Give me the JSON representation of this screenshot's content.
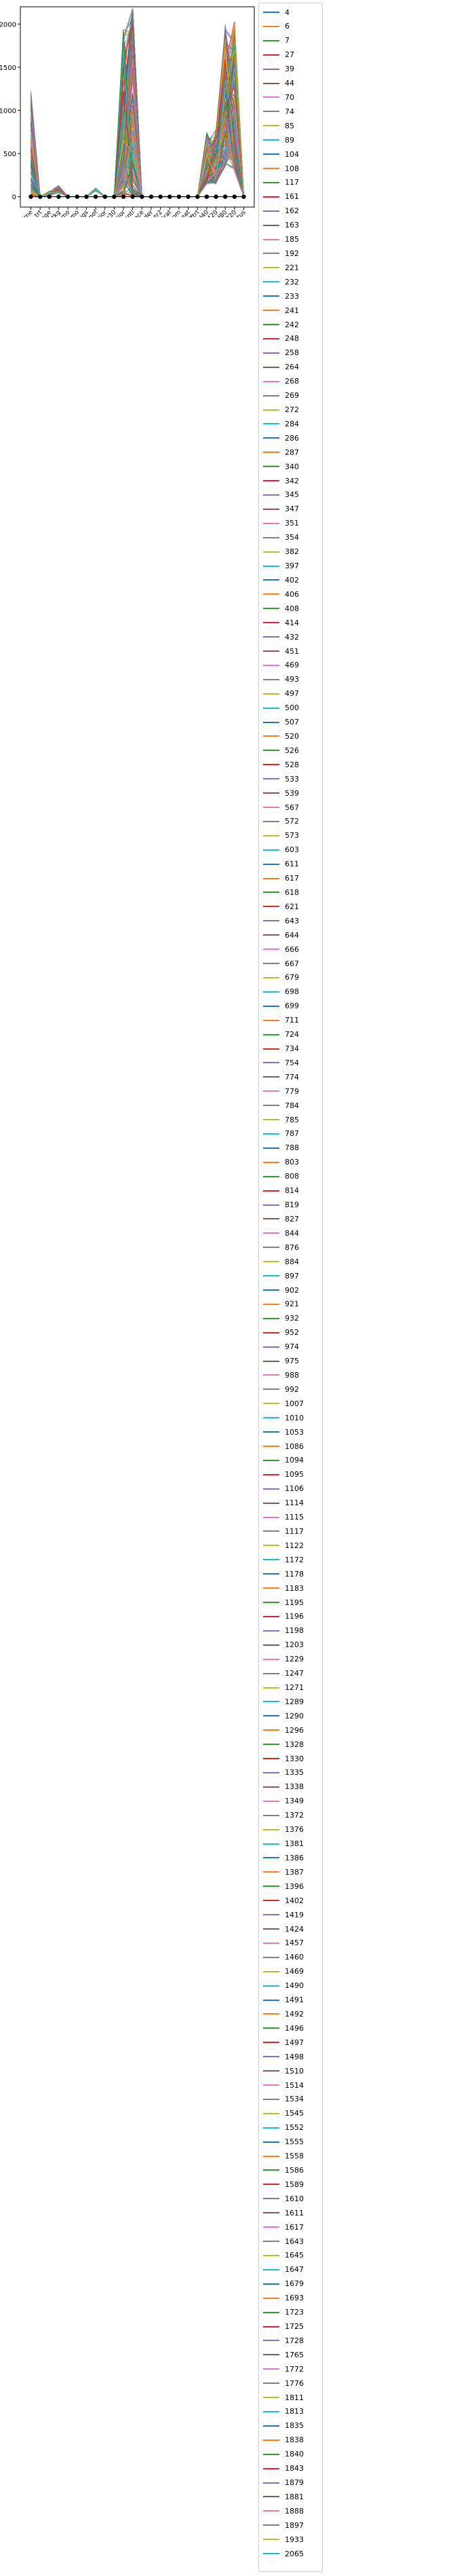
{
  "chart_data": {
    "type": "line",
    "title": "",
    "xlabel": "",
    "ylabel": "",
    "categories": [
      "time",
      "trt",
      "age",
      "wtkg",
      "hemo",
      "homo",
      "drugs",
      "karnof",
      "oprior",
      "z30",
      "zprior",
      "preanti",
      "race",
      "gender",
      "str2",
      "strat",
      "symptom",
      "treat",
      "offtrt",
      "cd40",
      "cd420",
      "cd80",
      "cd820",
      "status"
    ],
    "ylim": [
      -120,
      2200
    ],
    "yticks": [
      0,
      500,
      1000,
      1500,
      2000
    ],
    "grid": false,
    "legend_position": "outside-right",
    "colors": [
      "#1f77b4",
      "#ff7f0e",
      "#2ca02c",
      "#d62728",
      "#9467bd",
      "#8c564b",
      "#e377c2",
      "#7f7f7f",
      "#bcbd22",
      "#17becf"
    ],
    "marker_series": {
      "name": "",
      "values": [
        0,
        0,
        0,
        0,
        0,
        0,
        0,
        0,
        0,
        0,
        0,
        0,
        0,
        0,
        0,
        0,
        0,
        0,
        0,
        0,
        0,
        0,
        0,
        0
      ],
      "color": "#000000"
    },
    "series_profiles": {
      "note_values_are_plotted_envelope": true,
      "min": [
        20,
        0,
        15,
        45,
        0,
        0,
        0,
        70,
        0,
        0,
        1,
        0,
        0,
        0,
        0,
        1,
        0,
        0,
        0,
        150,
        150,
        350,
        300,
        0
      ],
      "max": [
        1230,
        1,
        65,
        130,
        1,
        1,
        1,
        100,
        1,
        1,
        1950,
        2800,
        1,
        1,
        1,
        4,
        1,
        1,
        1,
        750,
        780,
        2080,
        2040,
        1
      ]
    },
    "legend_entries": [
      "4",
      "6",
      "7",
      "27",
      "39",
      "44",
      "70",
      "74",
      "85",
      "89",
      "104",
      "108",
      "117",
      "161",
      "162",
      "163",
      "185",
      "192",
      "221",
      "232",
      "233",
      "241",
      "242",
      "248",
      "258",
      "264",
      "268",
      "269",
      "272",
      "284",
      "286",
      "287",
      "340",
      "342",
      "345",
      "347",
      "351",
      "354",
      "382",
      "397",
      "402",
      "406",
      "408",
      "414",
      "432",
      "451",
      "469",
      "493",
      "497",
      "500",
      "507",
      "520",
      "526",
      "528",
      "533",
      "539",
      "567",
      "572",
      "573",
      "603",
      "611",
      "617",
      "618",
      "621",
      "643",
      "644",
      "666",
      "667",
      "679",
      "698",
      "699",
      "711",
      "724",
      "734",
      "754",
      "774",
      "779",
      "784",
      "785",
      "787",
      "788",
      "803",
      "808",
      "814",
      "819",
      "827",
      "844",
      "876",
      "884",
      "897",
      "902",
      "921",
      "932",
      "952",
      "974",
      "975",
      "988",
      "992",
      "1007",
      "1010",
      "1053",
      "1086",
      "1094",
      "1095",
      "1106",
      "1114",
      "1115",
      "1117",
      "1122",
      "1172",
      "1178",
      "1183",
      "1195",
      "1196",
      "1198",
      "1203",
      "1229",
      "1247",
      "1271",
      "1289",
      "1290",
      "1296",
      "1328",
      "1330",
      "1335",
      "1338",
      "1349",
      "1372",
      "1376",
      "1381",
      "1386",
      "1387",
      "1396",
      "1402",
      "1419",
      "1424",
      "1457",
      "1460",
      "1469",
      "1490",
      "1491",
      "1492",
      "1496",
      "1497",
      "1498",
      "1510",
      "1514",
      "1534",
      "1545",
      "1552",
      "1555",
      "1558",
      "1586",
      "1589",
      "1610",
      "1611",
      "1617",
      "1643",
      "1645",
      "1647",
      "1679",
      "1693",
      "1723",
      "1725",
      "1728",
      "1765",
      "1772",
      "1776",
      "1811",
      "1813",
      "1835",
      "1838",
      "1840",
      "1843",
      "1879",
      "1881",
      "1888",
      "1897",
      "1933",
      "2065"
    ]
  }
}
